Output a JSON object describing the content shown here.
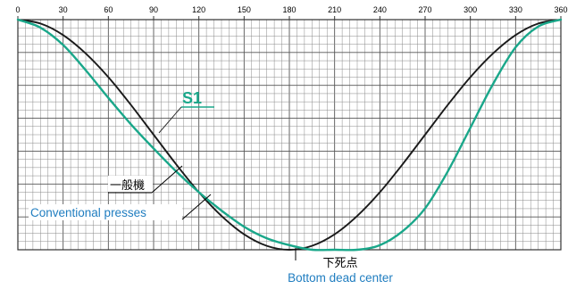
{
  "chart_data": {
    "type": "line",
    "xlim": [
      0,
      360
    ],
    "x_ticks": [
      "0",
      "30",
      "60",
      "90",
      "120",
      "150",
      "180",
      "210",
      "240",
      "270",
      "300",
      "330",
      "360"
    ],
    "x_tick_values": [
      0,
      30,
      60,
      90,
      120,
      150,
      180,
      210,
      240,
      270,
      300,
      330,
      360
    ],
    "y_gridlines": true,
    "series": [
      {
        "name": "一般機 / Conventional presses",
        "color": "#1a1a1a",
        "x": [
          0,
          15,
          30,
          45,
          60,
          75,
          90,
          105,
          120,
          135,
          150,
          165,
          180,
          195,
          210,
          225,
          240,
          255,
          270,
          285,
          300,
          315,
          330,
          345,
          360
        ],
        "y": [
          1.0,
          0.983,
          0.933,
          0.853,
          0.75,
          0.629,
          0.5,
          0.371,
          0.25,
          0.147,
          0.067,
          0.017,
          0.0,
          0.017,
          0.067,
          0.147,
          0.25,
          0.371,
          0.5,
          0.629,
          0.75,
          0.853,
          0.933,
          0.983,
          1.0
        ]
      },
      {
        "name": "S1",
        "color": "#1aa78a",
        "x": [
          0,
          15,
          30,
          45,
          60,
          75,
          90,
          105,
          120,
          135,
          150,
          165,
          180,
          195,
          210,
          225,
          240,
          255,
          270,
          285,
          300,
          315,
          330,
          345,
          360
        ],
        "y": [
          1.0,
          0.965,
          0.89,
          0.78,
          0.66,
          0.545,
          0.44,
          0.34,
          0.25,
          0.17,
          0.1,
          0.05,
          0.02,
          0.0,
          0.0,
          0.0,
          0.02,
          0.08,
          0.18,
          0.34,
          0.53,
          0.72,
          0.88,
          0.97,
          1.0
        ]
      }
    ],
    "annotations": {
      "s1_label": "S1",
      "conventional_jp": "一般機",
      "conventional_en": "Conventional presses",
      "bdc_jp": "下死点",
      "bdc_en": "Bottom dead center",
      "bdc_x": 180
    }
  }
}
